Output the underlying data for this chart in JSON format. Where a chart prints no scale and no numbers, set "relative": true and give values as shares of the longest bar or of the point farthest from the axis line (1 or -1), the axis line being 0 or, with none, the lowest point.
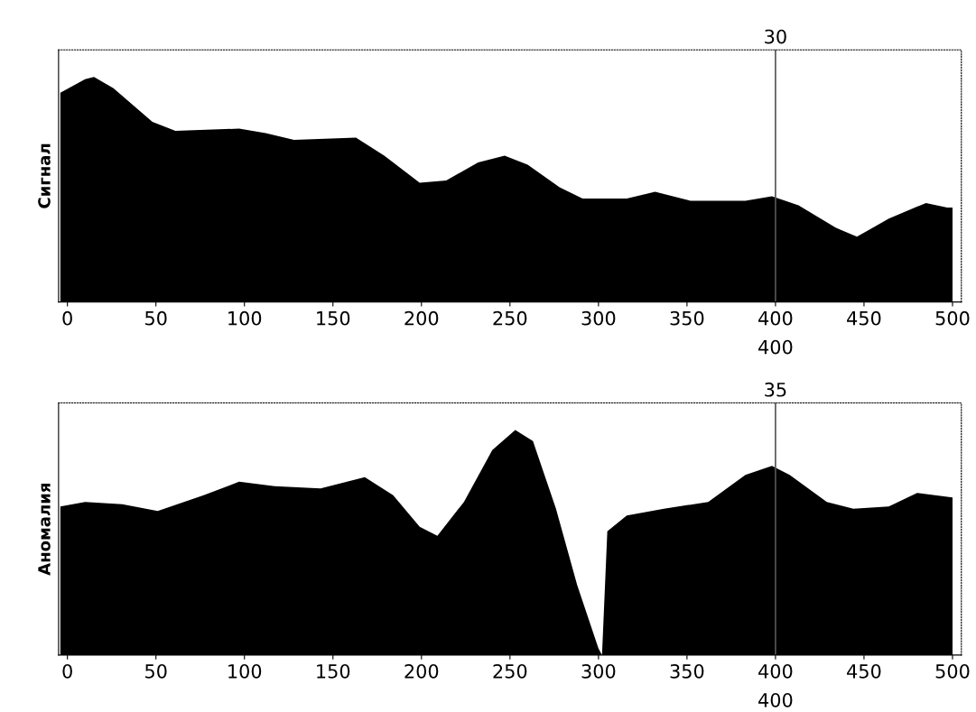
{
  "chart_data": [
    {
      "type": "area",
      "relative": true,
      "ylabel": "Сигнал",
      "xlim": [
        -5,
        505
      ],
      "xticks": [
        0,
        50,
        100,
        150,
        200,
        250,
        300,
        350,
        400,
        450,
        500
      ],
      "tick_labels": "x",
      "grid": false,
      "legend": false,
      "x": [
        -4,
        10,
        15,
        26,
        48,
        61,
        97,
        112,
        128,
        163,
        179,
        199,
        214,
        232,
        247,
        260,
        278,
        291,
        316,
        332,
        352,
        383,
        398,
        413,
        434,
        446,
        464,
        485,
        497,
        500
      ],
      "series": [
        {
          "color": "#000000",
          "values": [
            0.93,
            0.99,
            1.0,
            0.95,
            0.8,
            0.76,
            0.77,
            0.75,
            0.72,
            0.73,
            0.65,
            0.53,
            0.54,
            0.62,
            0.65,
            0.61,
            0.51,
            0.46,
            0.46,
            0.49,
            0.45,
            0.45,
            0.47,
            0.43,
            0.33,
            0.29,
            0.37,
            0.44,
            0.42,
            0.42
          ]
        }
      ],
      "ref_lines": [
        {
          "axis": "x",
          "value": 400,
          "label": "400",
          "color": "#555555"
        }
      ],
      "annotations": [
        "30"
      ]
    },
    {
      "type": "area",
      "relative": true,
      "ylabel": "Аномалия",
      "xlim": [
        -5,
        505
      ],
      "xticks": [
        0,
        50,
        100,
        150,
        200,
        250,
        300,
        350,
        400,
        450,
        500
      ],
      "tick_labels": "x",
      "grid": false,
      "legend": false,
      "x": [
        -4,
        10,
        31,
        51,
        77,
        97,
        117,
        143,
        168,
        184,
        199,
        209,
        224,
        240,
        253,
        263,
        276,
        288,
        300,
        302,
        305,
        316,
        337,
        362,
        383,
        398,
        408,
        429,
        444,
        464,
        480,
        500
      ],
      "series": [
        {
          "color": "#000000",
          "values": [
            0.66,
            0.68,
            0.67,
            0.64,
            0.71,
            0.77,
            0.75,
            0.74,
            0.79,
            0.71,
            0.57,
            0.53,
            0.68,
            0.91,
            1.0,
            0.95,
            0.65,
            0.31,
            0.03,
            0.0,
            0.55,
            0.62,
            0.65,
            0.68,
            0.8,
            0.84,
            0.8,
            0.68,
            0.65,
            0.66,
            0.72,
            0.7
          ]
        }
      ],
      "ref_lines": [
        {
          "axis": "x",
          "value": 400,
          "label": "400",
          "color": "#555555"
        }
      ],
      "annotations": [
        "35"
      ]
    }
  ]
}
